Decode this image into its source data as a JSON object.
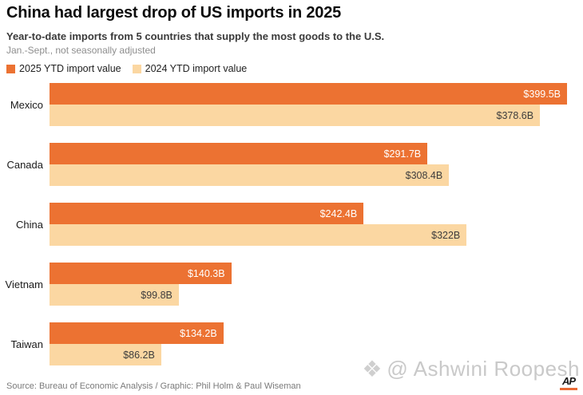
{
  "header": {
    "title": "China had largest drop of US imports in 2025",
    "subtitle": "Year-to-date imports from 5 countries that supply the most goods to the U.S.",
    "note": "Jan.-Sept., not seasonally adjusted"
  },
  "legend": [
    {
      "label": "2025 YTD import value",
      "color": "#EC7232"
    },
    {
      "label": "2024 YTD import value",
      "color": "#FBD7A2"
    }
  ],
  "chart_data": {
    "type": "bar",
    "orientation": "horizontal",
    "title": "China had largest drop of US imports in 2025",
    "xlabel": "",
    "ylabel": "",
    "unit": "billions of U.S. dollars",
    "grid": false,
    "legend_position": "top",
    "value_axis_max": 399.5,
    "categories": [
      "Mexico",
      "Canada",
      "China",
      "Vietnam",
      "Taiwan"
    ],
    "series": [
      {
        "name": "2025 YTD import value",
        "color": "#EC7232",
        "label_color": "#ffffff",
        "values": [
          399.5,
          291.7,
          242.4,
          140.3,
          134.2
        ],
        "labels": [
          "$399.5B",
          "$291.7B",
          "$242.4B",
          "$140.3B",
          "$134.2B"
        ]
      },
      {
        "name": "2024 YTD import value",
        "color": "#FBD7A2",
        "label_color": "#3d3d3d",
        "values": [
          378.6,
          308.4,
          322,
          99.8,
          86.2
        ],
        "labels": [
          "$378.6B",
          "$308.4B",
          "$322B",
          "$99.8B",
          "$86.2B"
        ]
      }
    ]
  },
  "footer": {
    "source": "Source: Bureau of Economic Analysis / Graphic: Phil Holm & Paul Wiseman"
  },
  "watermark": {
    "icon": "gem-icon",
    "icon_glyph": "❖",
    "text": "@ Ashwini Roopesh"
  },
  "branding": {
    "logo_text": "AP",
    "underline_color": "#E96A35"
  }
}
